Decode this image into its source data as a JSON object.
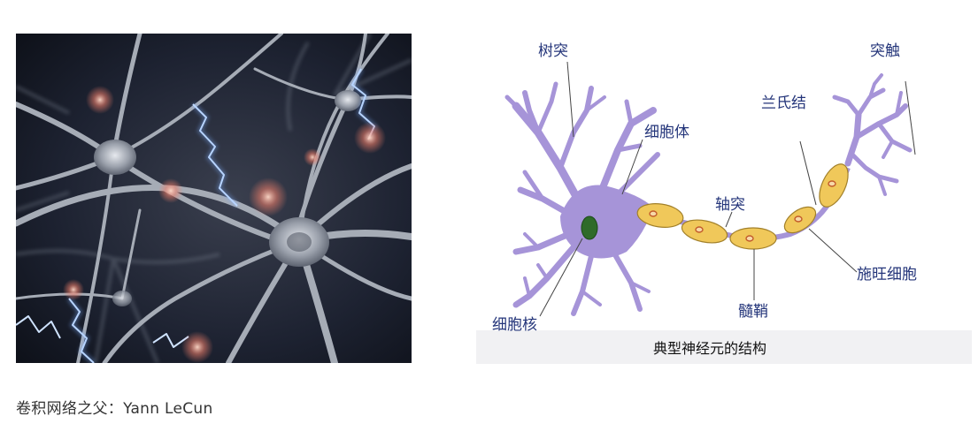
{
  "caption": "卷积网络之父：Yann LeCun",
  "diagram": {
    "title": "典型神经元的结构",
    "labels": {
      "dendrite": "树突",
      "soma": "细胞体",
      "axon": "轴突",
      "nucleus": "细胞核",
      "myelin": "髓鞘",
      "node_of_ranvier": "兰氏结",
      "schwann_cell": "施旺细胞",
      "synapse": "突触"
    }
  },
  "colors": {
    "cell_body": "#a694d8",
    "myelin": "#f0c85a",
    "nucleus": "#2f6b2a",
    "label_text": "#24357a"
  }
}
